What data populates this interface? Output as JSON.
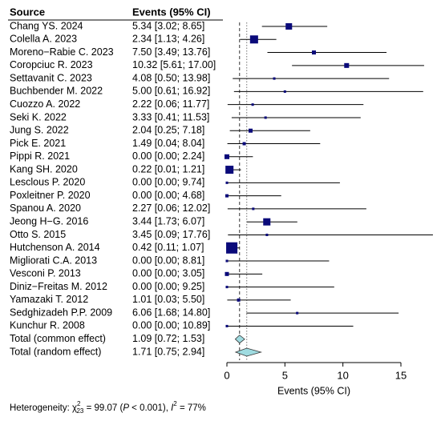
{
  "chart_data": {
    "type": "forest",
    "header": {
      "source": "Source",
      "estimate": "Events (95% CI)"
    },
    "categories": [
      "Chang YS. 2024",
      "Colella A. 2023",
      "Moreno−Rabie C. 2023",
      "Coropciuc R. 2023",
      "Settavanit C. 2023",
      "Buchbender M. 2022",
      "Cuozzo A. 2022",
      "Seki K. 2022",
      "Jung S. 2022",
      "Pick E. 2021",
      "Pippi R. 2021",
      "Kang SH. 2020",
      "Lesclous P. 2020",
      "Poxleitner P. 2020",
      "Spanou A. 2020",
      "Jeong H−G. 2016",
      "Otto S. 2015",
      "Hutchenson A. 2014",
      "Migliorati C.A. 2013",
      "Vesconi P. 2013",
      "Diniz−Freitas M. 2012",
      "Yamazaki T. 2012",
      "Sedghizadeh P.P. 2009",
      "Kunchur R. 2008"
    ],
    "values": [
      5.34,
      2.34,
      7.5,
      10.32,
      4.08,
      5.0,
      2.22,
      3.33,
      2.04,
      1.49,
      0.0,
      0.22,
      0.0,
      0.0,
      2.27,
      3.44,
      3.45,
      0.42,
      0.0,
      0.0,
      0.0,
      1.01,
      6.06,
      0.0
    ],
    "lower": [
      3.02,
      1.13,
      3.49,
      5.61,
      0.5,
      0.61,
      0.06,
      0.41,
      0.25,
      0.04,
      0.0,
      0.01,
      0.0,
      0.0,
      0.06,
      1.73,
      0.09,
      0.11,
      0.0,
      0.0,
      0.0,
      0.03,
      1.68,
      0.0
    ],
    "upper": [
      8.65,
      4.26,
      13.76,
      17.0,
      13.98,
      16.92,
      11.77,
      11.53,
      7.18,
      8.04,
      2.24,
      1.21,
      9.74,
      4.68,
      12.02,
      6.07,
      17.76,
      1.07,
      8.81,
      3.05,
      9.25,
      5.5,
      14.8,
      10.89
    ],
    "value_labels": [
      "5.34 [3.02; 8.65]",
      "2.34 [1.13; 4.26]",
      "7.50 [3.49; 13.76]",
      "10.32 [5.61; 17.00]",
      "4.08 [0.50; 13.98]",
      "5.00 [0.61; 16.92]",
      "2.22 [0.06; 11.77]",
      "3.33 [0.41; 11.53]",
      "2.04 [0.25; 7.18]",
      "1.49 [0.04; 8.04]",
      "0.00 [0.00; 2.24]",
      "0.22 [0.01; 1.21]",
      "0.00 [0.00; 9.74]",
      "0.00 [0.00; 4.68]",
      "2.27 [0.06; 12.02]",
      "3.44 [1.73; 6.07]",
      "3.45 [0.09; 17.76]",
      "0.42 [0.11; 1.07]",
      "0.00 [0.00; 8.81]",
      "0.00 [0.00; 3.05]",
      "0.00 [0.00; 9.25]",
      "1.01 [0.03; 5.50]",
      "6.06 [1.68; 14.80]",
      "0.00 [0.00; 10.89]"
    ],
    "weights": [
      7.7,
      12.0,
      3.0,
      4.3,
      1.1,
      1.1,
      1.1,
      1.1,
      3.0,
      1.9,
      4.3,
      12.0,
      1.1,
      1.9,
      1.1,
      9.7,
      1.1,
      23.5,
      1.1,
      3.0,
      1.1,
      1.9,
      1.1,
      1.1
    ],
    "color": "#0a0a7a",
    "pooled": [
      {
        "name": "Total (common effect)",
        "value": 1.09,
        "lower": 0.72,
        "upper": 1.53,
        "value_label": "1.09 [0.72; 1.53]",
        "line_style": "dashed"
      },
      {
        "name": "Total (random effect)",
        "value": 1.71,
        "lower": 0.75,
        "upper": 2.94,
        "value_label": "1.71 [0.75; 2.94]",
        "line_style": "dotted"
      }
    ],
    "diamond_color": "#9fdbe0",
    "xlabel": "Events (95% CI)",
    "xlim": [
      0,
      15
    ],
    "xticks": [
      0,
      5,
      10,
      15
    ],
    "heterogeneity": [
      "Heterogeneity: χ",
      "2",
      "23",
      " = 99.07 (",
      "P",
      " < 0.001), ",
      "I",
      "2",
      " = 77%"
    ]
  }
}
